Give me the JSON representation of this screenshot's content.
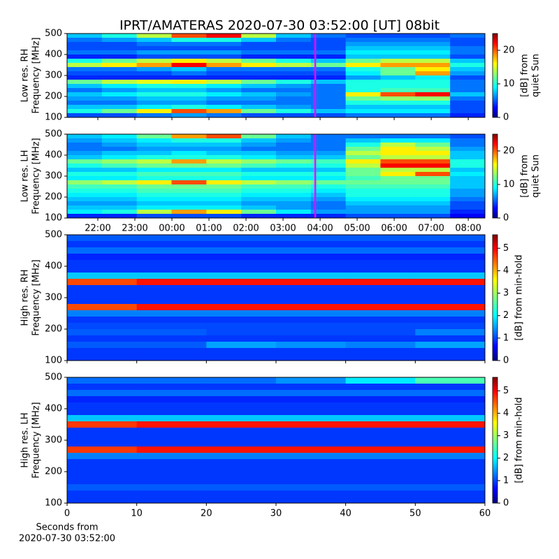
{
  "chart_data": [
    {
      "type": "heatmap",
      "title": "IPRT/AMATERAS 2020-07-30 03:52:00 [UT]   08bit",
      "ylabel": [
        "Low res. RH",
        "Frequency [MHz]"
      ],
      "colorbar_label": [
        "[dB] from",
        "quiet Sun"
      ],
      "xlim": [
        21.17,
        32.45
      ],
      "xticks": [
        22,
        23,
        24,
        25,
        26,
        27,
        28,
        29,
        30,
        31,
        32
      ],
      "x_labels": false,
      "ylim": [
        100,
        500
      ],
      "yticks": [
        100,
        200,
        300,
        400,
        500
      ],
      "zlim": [
        0,
        25
      ],
      "zticks": [
        0,
        10,
        20
      ],
      "colormap": "jet",
      "origin": "upper",
      "marker_x": 27.87,
      "marker_color": "#ff00ff",
      "z": [
        [
          8,
          10,
          14,
          20,
          22,
          14,
          8,
          6,
          5,
          5,
          5,
          6
        ],
        [
          6,
          7,
          8,
          10,
          10,
          8,
          6,
          5,
          6,
          6,
          6,
          5
        ],
        [
          5,
          5,
          6,
          6,
          6,
          5,
          5,
          5,
          7,
          7,
          7,
          5
        ],
        [
          5,
          5,
          5,
          5,
          5,
          5,
          5,
          5,
          8,
          8,
          8,
          6
        ],
        [
          6,
          6,
          7,
          7,
          7,
          6,
          6,
          6,
          9,
          9,
          9,
          6
        ],
        [
          4,
          4,
          5,
          5,
          5,
          4,
          4,
          4,
          8,
          8,
          8,
          5
        ],
        [
          10,
          12,
          14,
          16,
          14,
          12,
          10,
          8,
          12,
          14,
          14,
          8
        ],
        [
          14,
          16,
          18,
          22,
          18,
          16,
          14,
          12,
          16,
          18,
          18,
          10
        ],
        [
          6,
          6,
          7,
          8,
          6,
          6,
          6,
          6,
          10,
          12,
          16,
          8
        ],
        [
          5,
          5,
          5,
          6,
          5,
          5,
          5,
          5,
          9,
          12,
          18,
          7
        ],
        [
          4,
          4,
          4,
          4,
          4,
          4,
          4,
          4,
          7,
          8,
          9,
          5
        ],
        [
          12,
          14,
          15,
          16,
          14,
          12,
          10,
          8,
          10,
          10,
          10,
          6
        ],
        [
          8,
          9,
          10,
          10,
          9,
          8,
          7,
          6,
          10,
          10,
          10,
          6
        ],
        [
          6,
          7,
          8,
          8,
          7,
          6,
          6,
          6,
          10,
          11,
          11,
          6
        ],
        [
          8,
          9,
          10,
          10,
          9,
          8,
          7,
          6,
          16,
          20,
          22,
          8
        ],
        [
          7,
          7,
          8,
          8,
          7,
          7,
          6,
          6,
          12,
          13,
          13,
          6
        ],
        [
          6,
          6,
          7,
          7,
          6,
          6,
          6,
          6,
          10,
          10,
          10,
          5
        ],
        [
          8,
          8,
          9,
          10,
          9,
          8,
          7,
          6,
          8,
          8,
          8,
          5
        ],
        [
          10,
          12,
          16,
          20,
          18,
          12,
          10,
          8,
          9,
          9,
          9,
          5
        ],
        [
          5,
          5,
          6,
          7,
          6,
          5,
          5,
          5,
          6,
          6,
          6,
          4
        ]
      ]
    },
    {
      "type": "heatmap",
      "ylabel": [
        "Low res. LH",
        "Frequency [MHz]"
      ],
      "colorbar_label": [
        "[dB] from",
        "quiet Sun"
      ],
      "xlim": [
        21.17,
        32.45
      ],
      "xticks": [
        {
          "value": 22,
          "label": "22:00"
        },
        {
          "value": 23,
          "label": "23:00"
        },
        {
          "value": 24,
          "label": "00:00"
        },
        {
          "value": 25,
          "label": "01:00"
        },
        {
          "value": 26,
          "label": "02:00"
        },
        {
          "value": 27,
          "label": "03:00"
        },
        {
          "value": 28,
          "label": "04:00"
        },
        {
          "value": 29,
          "label": "05:00"
        },
        {
          "value": 30,
          "label": "06:00"
        },
        {
          "value": 31,
          "label": "07:00"
        },
        {
          "value": 32,
          "label": "08:00"
        }
      ],
      "x_labels": true,
      "ylim": [
        100,
        500
      ],
      "yticks": [
        100,
        200,
        300,
        400,
        500
      ],
      "zlim": [
        0,
        25
      ],
      "zticks": [
        0,
        10,
        20
      ],
      "colormap": "jet",
      "origin": "upper",
      "marker_x": 27.87,
      "marker_color": "#ff00ff",
      "z": [
        [
          8,
          9,
          12,
          18,
          20,
          12,
          8,
          6,
          6,
          6,
          6,
          5
        ],
        [
          7,
          8,
          9,
          10,
          10,
          8,
          7,
          6,
          8,
          9,
          9,
          6
        ],
        [
          6,
          7,
          8,
          8,
          8,
          7,
          6,
          6,
          10,
          14,
          12,
          6
        ],
        [
          6,
          6,
          7,
          7,
          7,
          6,
          6,
          6,
          12,
          16,
          14,
          7
        ],
        [
          7,
          8,
          8,
          9,
          8,
          8,
          7,
          7,
          14,
          16,
          16,
          8
        ],
        [
          8,
          9,
          10,
          10,
          10,
          9,
          8,
          8,
          12,
          14,
          14,
          8
        ],
        [
          12,
          13,
          14,
          18,
          14,
          13,
          12,
          11,
          16,
          20,
          20,
          10
        ],
        [
          10,
          11,
          12,
          12,
          12,
          11,
          10,
          10,
          14,
          22,
          22,
          10
        ],
        [
          8,
          8,
          9,
          9,
          9,
          8,
          8,
          8,
          12,
          14,
          14,
          8
        ],
        [
          10,
          10,
          11,
          11,
          11,
          10,
          10,
          10,
          12,
          16,
          20,
          9
        ],
        [
          9,
          9,
          10,
          10,
          10,
          9,
          9,
          9,
          11,
          12,
          12,
          8
        ],
        [
          13,
          14,
          16,
          20,
          16,
          14,
          13,
          12,
          12,
          12,
          12,
          8
        ],
        [
          11,
          11,
          12,
          12,
          12,
          11,
          11,
          10,
          11,
          11,
          11,
          8
        ],
        [
          10,
          10,
          11,
          11,
          11,
          10,
          10,
          9,
          10,
          10,
          10,
          7
        ],
        [
          9,
          9,
          10,
          10,
          10,
          9,
          9,
          8,
          10,
          10,
          10,
          7
        ],
        [
          8,
          8,
          9,
          9,
          9,
          8,
          8,
          7,
          9,
          9,
          9,
          6
        ],
        [
          7,
          7,
          8,
          8,
          8,
          7,
          7,
          6,
          8,
          8,
          8,
          5
        ],
        [
          8,
          8,
          9,
          9,
          9,
          8,
          7,
          6,
          7,
          7,
          7,
          5
        ],
        [
          9,
          10,
          14,
          18,
          16,
          12,
          9,
          7,
          7,
          7,
          7,
          4
        ],
        [
          4,
          4,
          5,
          5,
          5,
          4,
          4,
          4,
          5,
          5,
          5,
          3
        ]
      ]
    },
    {
      "type": "heatmap",
      "ylabel": [
        "High res. RH",
        "Frequency [MHz]"
      ],
      "colorbar_label": [
        "[dB] from min-hold"
      ],
      "xlim": [
        0,
        60
      ],
      "xticks": [
        0,
        10,
        20,
        30,
        40,
        50,
        60
      ],
      "x_labels": false,
      "ylim": [
        100,
        500
      ],
      "yticks": [
        100,
        200,
        300,
        400,
        500
      ],
      "zlim": [
        0,
        5.6
      ],
      "zticks": [
        0,
        1,
        2,
        3,
        4,
        5
      ],
      "colormap": "jet",
      "origin": "upper",
      "z": [
        [
          1.2,
          1.2,
          1.2,
          1.2,
          1.2,
          1.2
        ],
        [
          1,
          1,
          1,
          1,
          1,
          1
        ],
        [
          1.3,
          1.3,
          1.3,
          1.3,
          1.3,
          1.3
        ],
        [
          0.9,
          0.9,
          0.9,
          0.9,
          0.9,
          0.9
        ],
        [
          1,
          1,
          1,
          1,
          1,
          1
        ],
        [
          1,
          1,
          1,
          1,
          1,
          1
        ],
        [
          1.8,
          1.8,
          1.8,
          1.8,
          1.8,
          1.8
        ],
        [
          4.5,
          4.8,
          4.8,
          4.8,
          4.8,
          4.8
        ],
        [
          1,
          1,
          1,
          1,
          1,
          1
        ],
        [
          1,
          1,
          1,
          1,
          1,
          1
        ],
        [
          1,
          1,
          1,
          1,
          1,
          1
        ],
        [
          4.5,
          4.8,
          4.8,
          4.8,
          4.8,
          4.8
        ],
        [
          1.4,
          1.4,
          1.4,
          1.4,
          1.4,
          1.4
        ],
        [
          1,
          1,
          1,
          1,
          1,
          1
        ],
        [
          1.1,
          1.1,
          1.1,
          1.1,
          1.1,
          1.1
        ],
        [
          1.2,
          1.2,
          1.1,
          1.1,
          1.1,
          1.4
        ],
        [
          1,
          1,
          1,
          1,
          1,
          1
        ],
        [
          1.2,
          1.2,
          1.6,
          1.5,
          1.4,
          1.6
        ],
        [
          1,
          1,
          1,
          1,
          1,
          1
        ],
        [
          1,
          1,
          1,
          1,
          1,
          1
        ]
      ]
    },
    {
      "type": "heatmap",
      "ylabel": [
        "High res. LH",
        "Frequency [MHz]"
      ],
      "colorbar_label": [
        "[dB] from min-hold"
      ],
      "xlabel": [
        "Seconds from",
        "2020-07-30 03:52:00"
      ],
      "xlim": [
        0,
        60
      ],
      "xticks": [
        0,
        10,
        20,
        30,
        40,
        50,
        60
      ],
      "x_labels": true,
      "ylim": [
        100,
        500
      ],
      "yticks": [
        100,
        200,
        300,
        400,
        500
      ],
      "zlim": [
        0,
        5.6
      ],
      "zticks": [
        0,
        1,
        2,
        3,
        4,
        5
      ],
      "colormap": "jet",
      "origin": "upper",
      "z": [
        [
          1.3,
          1.3,
          1.3,
          1.5,
          2,
          2.5
        ],
        [
          1,
          1,
          1,
          1,
          1,
          1
        ],
        [
          1.3,
          1.3,
          1.3,
          1.3,
          1.3,
          1.3
        ],
        [
          0.9,
          0.9,
          0.9,
          0.9,
          0.9,
          0.9
        ],
        [
          1,
          1,
          1,
          1,
          1,
          1
        ],
        [
          1,
          1,
          1,
          1,
          1,
          1
        ],
        [
          1.8,
          1.8,
          1.8,
          1.8,
          1.8,
          1.8
        ],
        [
          4.6,
          4.8,
          4.8,
          4.8,
          4.8,
          4.8
        ],
        [
          1,
          1,
          1,
          1,
          1,
          1
        ],
        [
          1,
          1,
          1,
          1,
          1,
          1
        ],
        [
          1,
          1,
          1,
          1,
          1,
          1
        ],
        [
          4.6,
          4.8,
          4.8,
          4.8,
          4.8,
          4.8
        ],
        [
          1.4,
          1.4,
          1.4,
          1.4,
          1.4,
          1.4
        ],
        [
          1,
          1,
          1,
          1,
          1,
          1
        ],
        [
          1,
          1,
          1,
          1,
          1,
          1
        ],
        [
          1,
          1,
          1,
          1,
          1,
          1
        ],
        [
          1,
          1,
          1,
          1,
          1,
          1
        ],
        [
          1.2,
          1.2,
          1.2,
          1.2,
          1.2,
          1.2
        ],
        [
          1,
          1,
          1,
          1,
          1,
          1
        ],
        [
          1,
          1,
          1,
          1,
          1,
          1
        ]
      ]
    }
  ]
}
